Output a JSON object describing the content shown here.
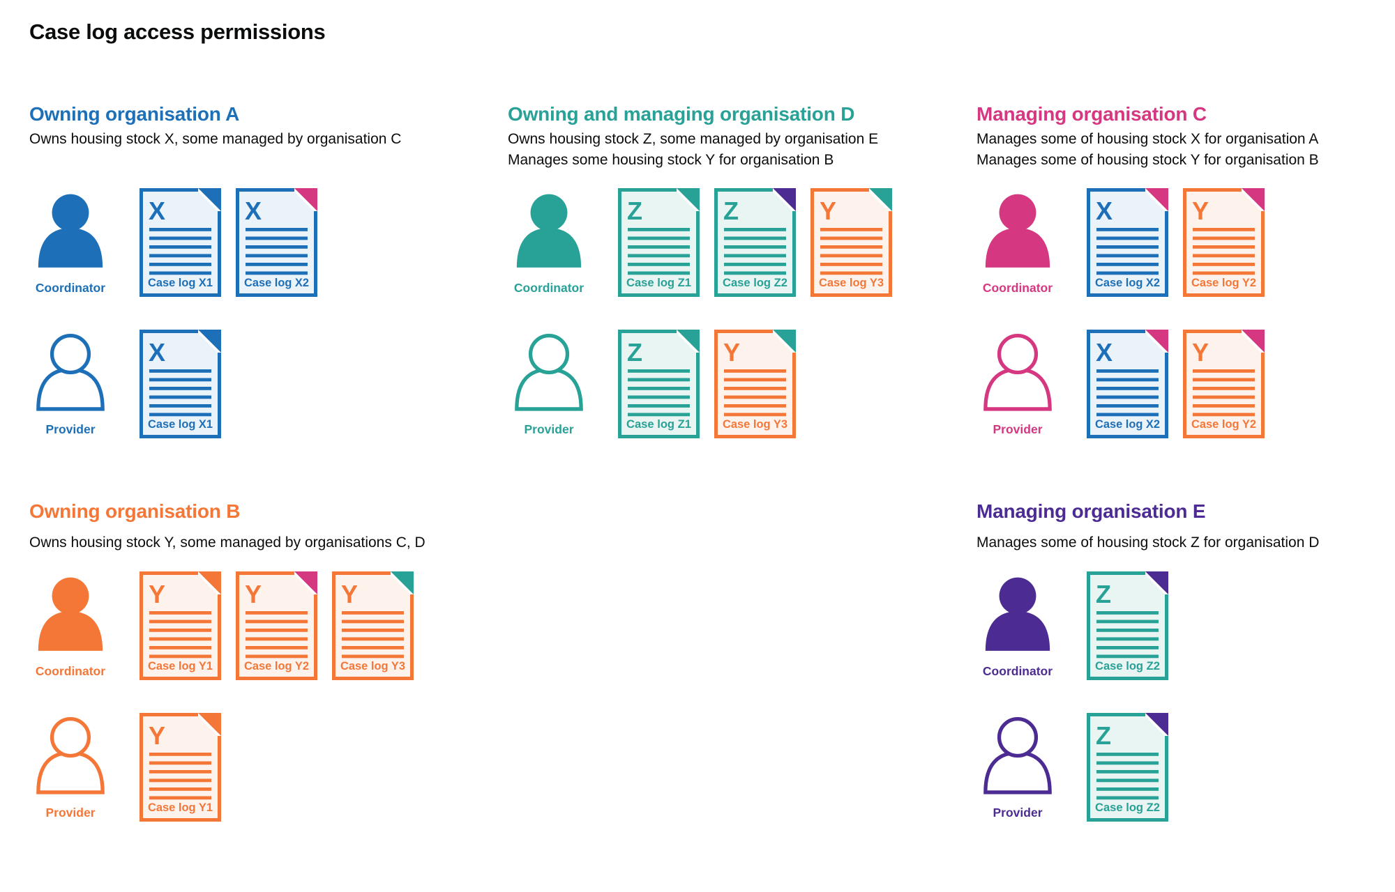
{
  "title": "Case log access permissions",
  "roles": {
    "coordinator": "Coordinator",
    "provider": "Provider"
  },
  "palette": {
    "blue": "#1d70b8",
    "teal": "#28a197",
    "pink": "#d53880",
    "orange": "#f47738",
    "purple": "#4c2c92",
    "text": "#0b0c0c",
    "tint_blue": "#eaf2fa",
    "tint_teal": "#e9f5f2",
    "tint_orange": "#fdf3ec"
  },
  "organisations": [
    {
      "id": "org-a",
      "name": "Owning organisation A",
      "color": "blue",
      "area": "top-left",
      "description": [
        "Owns housing stock X, some managed by organisation C"
      ],
      "rows": [
        {
          "role": "coordinator",
          "docs": [
            {
              "letter": "X",
              "doc": "blue",
              "fold": "blue",
              "label": "Case log X1"
            },
            {
              "letter": "X",
              "doc": "blue",
              "fold": "pink",
              "label": "Case log X2"
            }
          ]
        },
        {
          "role": "provider",
          "docs": [
            {
              "letter": "X",
              "doc": "blue",
              "fold": "blue",
              "label": "Case log X1"
            }
          ]
        }
      ]
    },
    {
      "id": "org-d",
      "name": "Owning and managing organisation D",
      "color": "teal",
      "area": "top-middle",
      "description": [
        "Owns housing stock Z, some managed by organisation E",
        "Manages some housing stock Y for organisation B"
      ],
      "rows": [
        {
          "role": "coordinator",
          "docs": [
            {
              "letter": "Z",
              "doc": "teal",
              "fold": "teal",
              "label": "Case log Z1"
            },
            {
              "letter": "Z",
              "doc": "teal",
              "fold": "purple",
              "label": "Case log Z2"
            },
            {
              "letter": "Y",
              "doc": "orange",
              "fold": "teal",
              "label": "Case log Y3"
            }
          ]
        },
        {
          "role": "provider",
          "docs": [
            {
              "letter": "Z",
              "doc": "teal",
              "fold": "teal",
              "label": "Case log Z1"
            },
            {
              "letter": "Y",
              "doc": "orange",
              "fold": "teal",
              "label": "Case log Y3"
            }
          ]
        }
      ]
    },
    {
      "id": "org-c",
      "name": "Managing organisation C",
      "color": "pink",
      "area": "top-right",
      "description": [
        "Manages some of housing stock X for organisation A",
        "Manages some of housing stock Y for organisation B"
      ],
      "rows": [
        {
          "role": "coordinator",
          "docs": [
            {
              "letter": "X",
              "doc": "blue",
              "fold": "pink",
              "label": "Case log X2"
            },
            {
              "letter": "Y",
              "doc": "orange",
              "fold": "pink",
              "label": "Case log Y2"
            }
          ]
        },
        {
          "role": "provider",
          "docs": [
            {
              "letter": "X",
              "doc": "blue",
              "fold": "pink",
              "label": "Case log X2"
            },
            {
              "letter": "Y",
              "doc": "orange",
              "fold": "pink",
              "label": "Case log Y2"
            }
          ]
        }
      ]
    },
    {
      "id": "org-b",
      "name": "Owning organisation B",
      "color": "orange",
      "area": "bottom-left",
      "description": [
        "Owns housing stock Y, some managed by organisations C, D"
      ],
      "rows": [
        {
          "role": "coordinator",
          "docs": [
            {
              "letter": "Y",
              "doc": "orange",
              "fold": "orange",
              "label": "Case log Y1"
            },
            {
              "letter": "Y",
              "doc": "orange",
              "fold": "pink",
              "label": "Case log Y2"
            },
            {
              "letter": "Y",
              "doc": "orange",
              "fold": "teal",
              "label": "Case log Y3"
            }
          ]
        },
        {
          "role": "provider",
          "docs": [
            {
              "letter": "Y",
              "doc": "orange",
              "fold": "orange",
              "label": "Case log Y1"
            }
          ]
        }
      ]
    },
    {
      "id": "org-e",
      "name": "Managing organisation E",
      "color": "purple",
      "area": "bottom-right",
      "description": [
        "Manages some of housing stock Z for organisation D"
      ],
      "rows": [
        {
          "role": "coordinator",
          "docs": [
            {
              "letter": "Z",
              "doc": "teal",
              "fold": "purple",
              "label": "Case log Z2"
            }
          ]
        },
        {
          "role": "provider",
          "docs": [
            {
              "letter": "Z",
              "doc": "teal",
              "fold": "purple",
              "label": "Case log Z2"
            }
          ]
        }
      ]
    }
  ]
}
